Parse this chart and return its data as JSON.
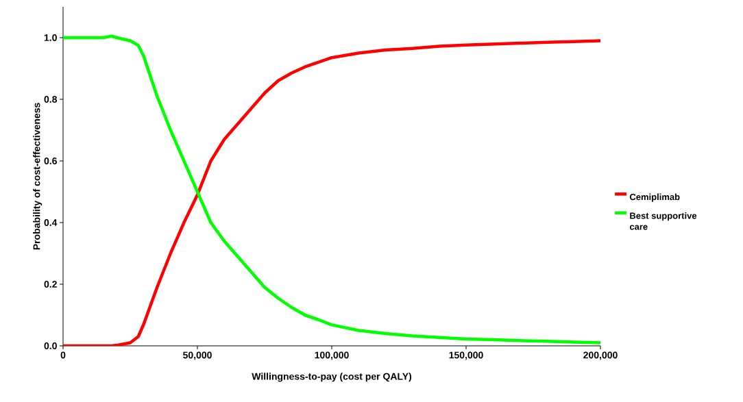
{
  "chart_data": {
    "type": "line",
    "xlabel": "Willingness-to-pay (cost per QALY)",
    "ylabel": "Probability of cost-effectiveness",
    "xlim": [
      0,
      200000
    ],
    "ylim": [
      0,
      1.1
    ],
    "xticks": [
      {
        "value": 0,
        "label": "0"
      },
      {
        "value": 50000,
        "label": "50,000"
      },
      {
        "value": 100000,
        "label": "100,000"
      },
      {
        "value": 150000,
        "label": "150,000"
      },
      {
        "value": 200000,
        "label": "200,000"
      }
    ],
    "yticks": [
      {
        "value": 0,
        "label": "0.0"
      },
      {
        "value": 0.2,
        "label": "0.2"
      },
      {
        "value": 0.4,
        "label": "0.4"
      },
      {
        "value": 0.6,
        "label": "0.6"
      },
      {
        "value": 0.8,
        "label": "0.8"
      },
      {
        "value": 1.0,
        "label": "1.0"
      }
    ],
    "x": [
      0,
      15000,
      18000,
      20000,
      25000,
      28000,
      30000,
      35000,
      40000,
      45000,
      50000,
      55000,
      60000,
      65000,
      70000,
      75000,
      80000,
      85000,
      90000,
      95000,
      100000,
      110000,
      120000,
      130000,
      140000,
      150000,
      160000,
      170000,
      180000,
      190000,
      200000
    ],
    "series": [
      {
        "name": "Cemiplimab",
        "color": "#ff0000",
        "values": [
          0,
          0,
          0,
          0.002,
          0.01,
          0.03,
          0.07,
          0.19,
          0.3,
          0.4,
          0.49,
          0.6,
          0.67,
          0.72,
          0.77,
          0.82,
          0.86,
          0.885,
          0.905,
          0.92,
          0.935,
          0.95,
          0.96,
          0.965,
          0.972,
          0.976,
          0.979,
          0.982,
          0.985,
          0.987,
          0.99
        ]
      },
      {
        "name": "Best supportive care",
        "color": "#00ff00",
        "values": [
          1,
          1,
          1.005,
          1,
          0.99,
          0.975,
          0.94,
          0.81,
          0.7,
          0.6,
          0.5,
          0.4,
          0.34,
          0.29,
          0.24,
          0.19,
          0.155,
          0.125,
          0.1,
          0.085,
          0.068,
          0.05,
          0.04,
          0.032,
          0.027,
          0.022,
          0.02,
          0.017,
          0.015,
          0.012,
          0.01
        ]
      }
    ],
    "legend": "right",
    "grid": false,
    "marker": "none",
    "line_style": "solid"
  }
}
